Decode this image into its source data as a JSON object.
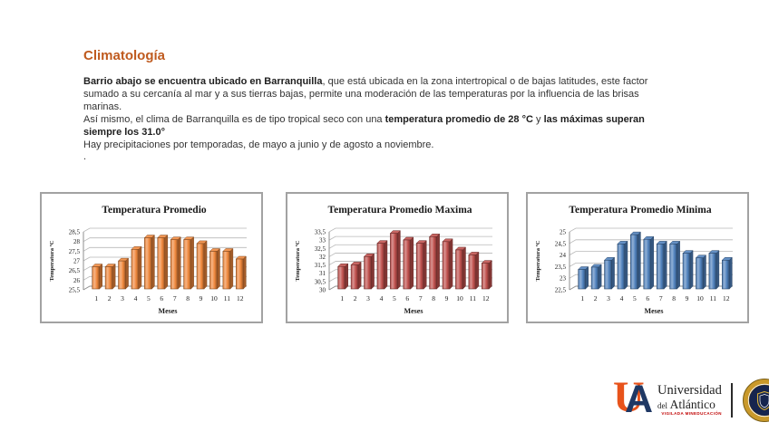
{
  "slide": {
    "title": "Climatología",
    "title_color": "#BF5A1E"
  },
  "intro": {
    "paragraphs": [
      [
        {
          "t": "Barrio abajo se encuentra ubicado en Barranquilla",
          "b": true
        },
        {
          "t": ", que está ubicada en la zona intertropical o de bajas latitudes, este factor sumado a su cercanía al mar y a sus tierras bajas, permite una moderación de las temperaturas por la influencia de las brisas marinas.",
          "b": false
        }
      ],
      [
        {
          "t": "Así mismo, el clima de Barranquilla es de tipo tropical seco con una ",
          "b": false
        },
        {
          "t": "temperatura promedio de 28 °C",
          "b": true
        },
        {
          "t": " y ",
          "b": false
        },
        {
          "t": "las  máximas superan siempre los 31.0°",
          "b": true
        }
      ],
      [
        {
          "t": "Hay precipitaciones por temporadas, de mayo a junio y de agosto a noviembre.",
          "b": false
        }
      ],
      [
        {
          "t": ".",
          "b": false
        }
      ]
    ]
  },
  "chart_data": [
    {
      "type": "bar",
      "title": "Temperatura Promedio",
      "xlabel": "Meses",
      "ylabel": "Temperatura ºC",
      "categories": [
        "1",
        "2",
        "3",
        "4",
        "5",
        "6",
        "7",
        "8",
        "9",
        "10",
        "11",
        "12"
      ],
      "values": [
        26.6,
        26.6,
        26.9,
        27.5,
        28.1,
        28.1,
        28.0,
        28.0,
        27.8,
        27.4,
        27.4,
        27.0
      ],
      "ylim": [
        25.5,
        28.5
      ],
      "ytick_step": 0.5,
      "bar_color": "#F0883C",
      "grid": true,
      "legend": "none"
    },
    {
      "type": "bar",
      "title": "Temperatura Promedio Maxima",
      "xlabel": "Meses",
      "ylabel": "Temperatura ºC",
      "categories": [
        "1",
        "2",
        "3",
        "4",
        "5",
        "6",
        "7",
        "8",
        "9",
        "10",
        "11",
        "12"
      ],
      "values": [
        31.3,
        31.4,
        31.9,
        32.7,
        33.3,
        32.9,
        32.7,
        33.1,
        32.8,
        32.3,
        32.0,
        31.5
      ],
      "ylim": [
        30,
        33.5
      ],
      "ytick_step": 0.5,
      "bar_color": "#C0504D",
      "grid": true,
      "legend": "none"
    },
    {
      "type": "bar",
      "title": "Temperatura Promedio Minima",
      "xlabel": "Meses",
      "ylabel": "Temperatura ºC",
      "categories": [
        "1",
        "2",
        "3",
        "4",
        "5",
        "6",
        "7",
        "8",
        "9",
        "10",
        "11",
        "12"
      ],
      "values": [
        23.3,
        23.4,
        23.7,
        24.4,
        24.8,
        24.6,
        24.4,
        24.4,
        24.0,
        23.8,
        24.0,
        23.7
      ],
      "ylim": [
        22.5,
        25
      ],
      "ytick_step": 0.5,
      "bar_color": "#4F81BD",
      "grid": true,
      "legend": "none"
    }
  ],
  "logo": {
    "monogram_u": "U",
    "monogram_a": "A",
    "monogram_u_color": "#E8531B",
    "monogram_a_color": "#1F3864",
    "name_line1": "Universidad",
    "name_line2_small": "del",
    "name_line2": "Atlántico",
    "tagline": "VIGILADA MINEDUCACIÓN",
    "tagline_color": "#C00000",
    "seal_gold": "#C9992B",
    "seal_navy": "#16254E"
  }
}
